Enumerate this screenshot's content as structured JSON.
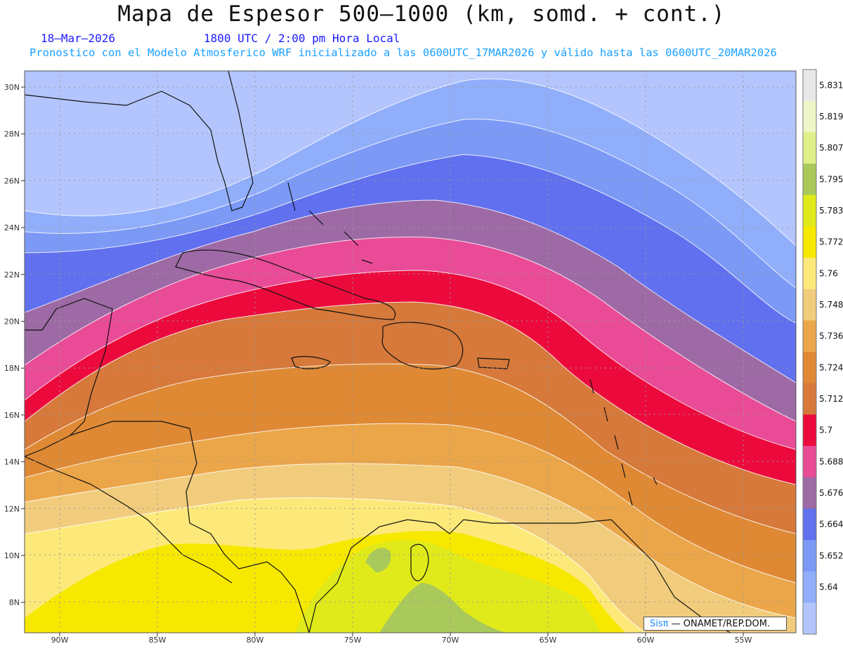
{
  "title": "Mapa de Espesor 500—1000 (km, somd. + cont.)",
  "subtitle_date": "18—Mar—2026",
  "subtitle_time": "1800 UTC / 2:00 pm Hora Local",
  "subtitle_model": "Pronostico con el Modelo Atmosferico WRF inicializado a las 0600UTC_17MAR2026 y válido hasta las  0600UTC_20MAR2026",
  "lat_labels": [
    "30N",
    "28N",
    "26N",
    "24N",
    "22N",
    "20N",
    "18N",
    "16N",
    "14N",
    "12N",
    "10N",
    "8N"
  ],
  "lon_labels": [
    "90W",
    "85W",
    "80W",
    "75W",
    "70W",
    "65W",
    "60W",
    "55W"
  ],
  "colorbar": {
    "labels": [
      "5.831",
      "5.819",
      "5.807",
      "5.795",
      "5.783",
      "5.772",
      "5.76",
      "5.748",
      "5.736",
      "5.724",
      "5.712",
      "5.7",
      "5.688",
      "5.676",
      "5.664",
      "5.652",
      "5.64"
    ],
    "colors": [
      "#e8e8e8",
      "#eef6c8",
      "#dff08a",
      "#a9c95a",
      "#e0ea1a",
      "#f7e800",
      "#fde97a",
      "#f1cc7c",
      "#eba649",
      "#df8935",
      "#d6793a",
      "#ec0a3c",
      "#e94b97",
      "#9e6aa6",
      "#6170ee",
      "#7b99f5",
      "#91aefb",
      "#b4c5fd"
    ]
  },
  "credit_brand": "Sisπ",
  "credit_text": "— ONAMET/REP.DOM.",
  "colors": {
    "title": "#111111",
    "subtitle": "#1a1aff",
    "model_line": "#1aa0ff"
  }
}
